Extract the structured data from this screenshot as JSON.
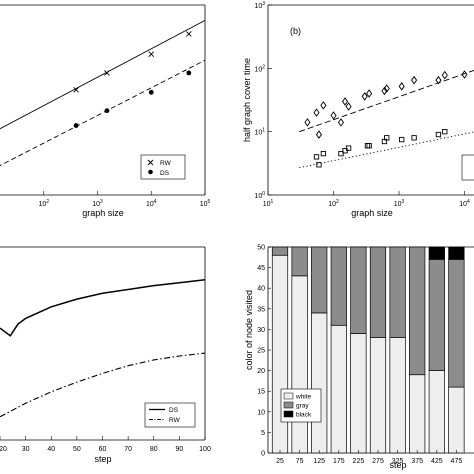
{
  "chart_data": [
    {
      "type": "line",
      "panel": "top-left",
      "xlabel": "graph size",
      "xscale": "log",
      "yscale": "log",
      "xlim": [
        10,
        100000
      ],
      "x_tick_labels": [
        "10^2",
        "10^3",
        "10^4",
        "10^5"
      ],
      "series": [
        {
          "name": "RW",
          "marker": "x",
          "line": "solid",
          "points": [
            [
              400,
              3.2
            ],
            [
              1500,
              5.0
            ],
            [
              10000,
              8.2
            ],
            [
              50000,
              14.0
            ]
          ],
          "fit": [
            [
              10,
              1.0
            ],
            [
              100000,
              20.0
            ]
          ]
        },
        {
          "name": "DS",
          "marker": "filled-circle",
          "line": "dashed",
          "points": [
            [
              400,
              1.25
            ],
            [
              1500,
              1.85
            ],
            [
              10000,
              3.0
            ],
            [
              50000,
              5.0
            ]
          ],
          "fit": [
            [
              10,
              0.38
            ],
            [
              100000,
              7.0
            ]
          ]
        }
      ],
      "legend": {
        "position": "bottom-right",
        "entries": [
          "RW",
          "DS"
        ]
      }
    },
    {
      "type": "scatter",
      "panel": "top-right",
      "annotation": "(b)",
      "xlabel": "graph size",
      "ylabel": "half graph cover time",
      "xscale": "log",
      "yscale": "log",
      "xlim": [
        10,
        100000
      ],
      "ylim": [
        1,
        1000
      ],
      "x_tick_labels": [
        "10^1",
        "10^2",
        "10^3",
        "10^4"
      ],
      "y_tick_labels": [
        "10^0",
        "10^1",
        "10^2",
        "10^3"
      ],
      "series": [
        {
          "marker": "diamond",
          "line": "dashed",
          "points": [
            [
              40,
              14
            ],
            [
              55,
              20
            ],
            [
              60,
              9
            ],
            [
              70,
              26
            ],
            [
              100,
              18
            ],
            [
              130,
              14
            ],
            [
              150,
              30
            ],
            [
              170,
              25
            ],
            [
              300,
              36
            ],
            [
              350,
              40
            ],
            [
              600,
              44
            ],
            [
              650,
              48
            ],
            [
              1100,
              52
            ],
            [
              1700,
              65
            ],
            [
              4000,
              65
            ],
            [
              5000,
              78
            ],
            [
              10000,
              80
            ],
            [
              15000,
              88
            ],
            [
              60000,
              105
            ],
            [
              90000,
              115
            ]
          ],
          "fit": [
            [
              30,
              10
            ],
            [
              100000,
              190
            ]
          ]
        },
        {
          "marker": "square",
          "line": "dotted",
          "points": [
            [
              55,
              4.0
            ],
            [
              60,
              3.0
            ],
            [
              70,
              4.5
            ],
            [
              130,
              4.5
            ],
            [
              150,
              5.0
            ],
            [
              170,
              5.5
            ],
            [
              330,
              6.0
            ],
            [
              350,
              6.0
            ],
            [
              600,
              7.0
            ],
            [
              650,
              8.0
            ],
            [
              1100,
              7.5
            ],
            [
              1700,
              8.0
            ],
            [
              4000,
              9.0
            ],
            [
              5000,
              10.0
            ],
            [
              15000,
              11.0
            ],
            [
              20000,
              13.0
            ]
          ],
          "fit": [
            [
              30,
              2.7
            ],
            [
              100000,
              15
            ]
          ]
        }
      ]
    },
    {
      "type": "line",
      "panel": "bottom-left",
      "xlabel": "step",
      "xlim": [
        20,
        100
      ],
      "x_tick_labels": [
        "20",
        "30",
        "40",
        "50",
        "60",
        "70",
        "80",
        "90",
        "100"
      ],
      "series": [
        {
          "name": "DS",
          "line": "solid",
          "points": [
            [
              20,
              0.58
            ],
            [
              24,
              0.54
            ],
            [
              27,
              0.6
            ],
            [
              30,
              0.63
            ],
            [
              40,
              0.69
            ],
            [
              50,
              0.73
            ],
            [
              60,
              0.76
            ],
            [
              70,
              0.78
            ],
            [
              80,
              0.8
            ],
            [
              90,
              0.815
            ],
            [
              100,
              0.83
            ]
          ]
        },
        {
          "name": "RW",
          "line": "dash-dot",
          "points": [
            [
              20,
              0.12
            ],
            [
              30,
              0.19
            ],
            [
              40,
              0.25
            ],
            [
              50,
              0.3
            ],
            [
              60,
              0.345
            ],
            [
              70,
              0.385
            ],
            [
              80,
              0.415
            ],
            [
              90,
              0.435
            ],
            [
              100,
              0.45
            ]
          ]
        }
      ],
      "legend": {
        "position": "bottom-right",
        "entries": [
          "DS",
          "RW"
        ]
      }
    },
    {
      "type": "bar",
      "stacked": true,
      "panel": "bottom-right",
      "xlabel": "step",
      "ylabel": "color of node visited",
      "ylim": [
        0,
        50
      ],
      "y_tick_labels": [
        "0",
        "5",
        "10",
        "15",
        "20",
        "25",
        "30",
        "35",
        "40",
        "45",
        "50"
      ],
      "categories": [
        "25",
        "75",
        "125",
        "175",
        "225",
        "275",
        "325",
        "375",
        "425",
        "475"
      ],
      "series": [
        {
          "name": "white",
          "color": "#eeeeee",
          "values": [
            48,
            43,
            34,
            31,
            29,
            28,
            28,
            19,
            20,
            16
          ]
        },
        {
          "name": "gray",
          "color": "#8c8c8c",
          "values": [
            2,
            7,
            16,
            19,
            21,
            22,
            22,
            31,
            27,
            31
          ]
        },
        {
          "name": "black",
          "color": "#000000",
          "values": [
            0,
            0,
            0,
            0,
            0,
            0,
            0,
            0,
            3,
            3
          ]
        }
      ],
      "legend": {
        "position": "bottom-left",
        "entries": [
          "white",
          "gray",
          "black"
        ]
      }
    }
  ]
}
